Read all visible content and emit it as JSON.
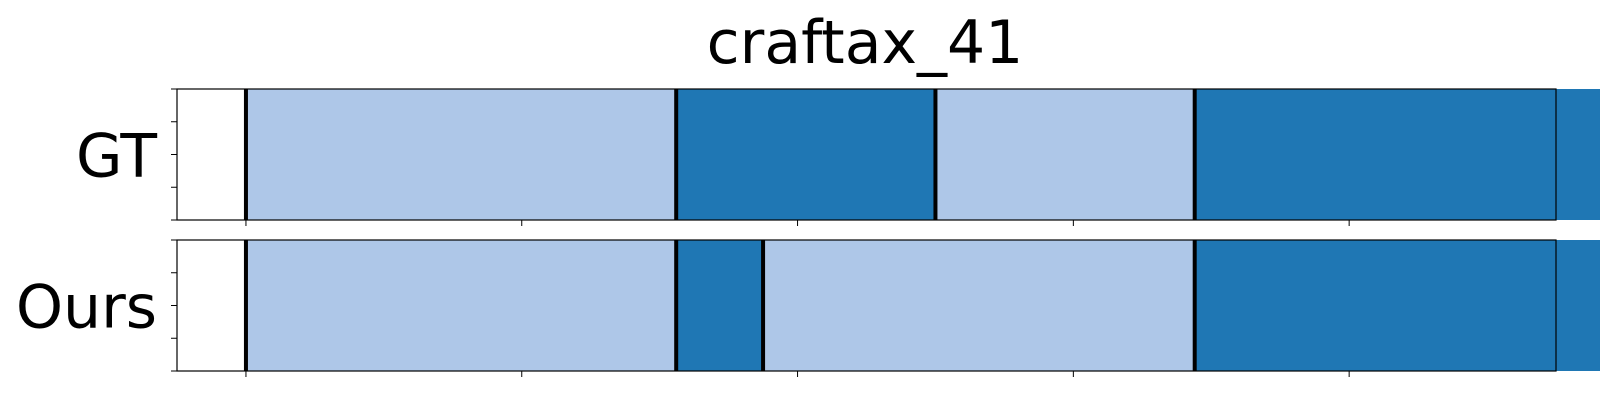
{
  "chart_data": {
    "type": "segmentation-timeline",
    "title": "craftax_41",
    "x_range": [
      0,
      100
    ],
    "colors": {
      "light": "#aec7e8",
      "dark": "#1f77b4",
      "boundary": "#000000"
    },
    "x_ticks": [
      5,
      25,
      45,
      65,
      85,
      105
    ],
    "rows": [
      {
        "label": "GT",
        "segments": [
          {
            "start": 5,
            "end": 36.2,
            "color": "light"
          },
          {
            "start": 36.2,
            "end": 55,
            "color": "dark"
          },
          {
            "start": 55,
            "end": 73.8,
            "color": "light"
          },
          {
            "start": 73.8,
            "end": 105,
            "color": "dark"
          }
        ]
      },
      {
        "label": "Ours",
        "segments": [
          {
            "start": 5,
            "end": 36.2,
            "color": "light"
          },
          {
            "start": 36.2,
            "end": 42.5,
            "color": "dark"
          },
          {
            "start": 42.5,
            "end": 73.8,
            "color": "light"
          },
          {
            "start": 73.8,
            "end": 105,
            "color": "dark"
          }
        ]
      }
    ]
  }
}
